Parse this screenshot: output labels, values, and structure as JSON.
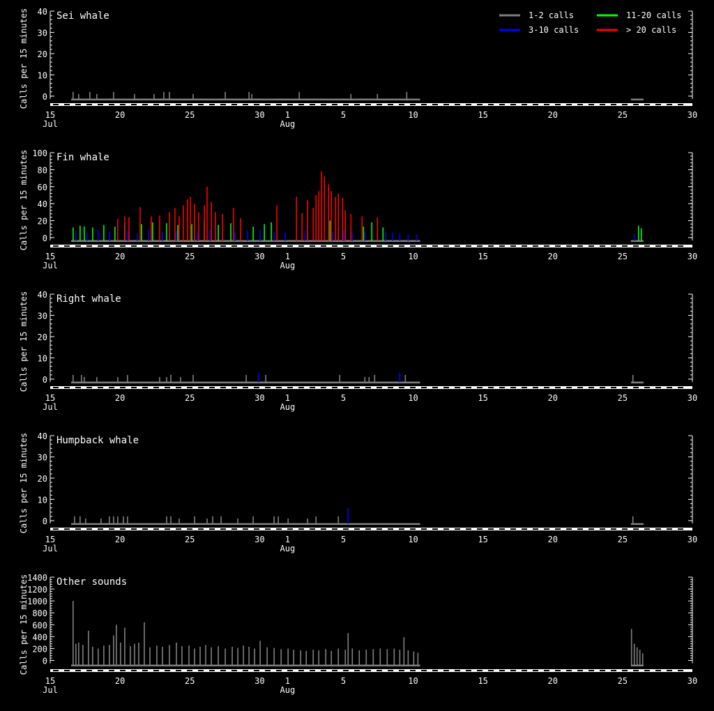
{
  "legend": {
    "entries": [
      {
        "label": "1-2 calls",
        "color": "#808080"
      },
      {
        "label": "11-20 calls",
        "color": "#00ff00"
      },
      {
        "label": "3-10 calls",
        "color": "#0000ff"
      },
      {
        "label": "> 20 calls",
        "color": "#ff0000"
      }
    ]
  },
  "time_axis": {
    "ticks": [
      {
        "day": 15,
        "label": "15",
        "sub": "Jul"
      },
      {
        "day": 20,
        "label": "20"
      },
      {
        "day": 25,
        "label": "25"
      },
      {
        "day": 30,
        "label": "30"
      },
      {
        "day": 32,
        "label": "1",
        "sub": "Aug"
      },
      {
        "day": 36,
        "label": "5"
      },
      {
        "day": 41,
        "label": "10"
      },
      {
        "day": 46,
        "label": "15"
      },
      {
        "day": 51,
        "label": "20"
      },
      {
        "day": 56,
        "label": "25"
      },
      {
        "day": 61,
        "label": "30"
      }
    ],
    "day_range": [
      15,
      61
    ]
  },
  "chart_data": [
    {
      "type": "bar",
      "title": "Sei whale",
      "ylabel": "Calls per 15 minutes",
      "ylim": [
        -2,
        40
      ],
      "yticks": [
        0,
        10,
        20,
        30,
        40
      ],
      "coverage": [
        [
          16.5,
          41.5
        ],
        [
          56.6,
          57.5
        ]
      ],
      "series": [
        {
          "name": "1-2 calls",
          "values": [
            [
              16.6,
              2
            ],
            [
              17.0,
              1
            ],
            [
              17.8,
              2
            ],
            [
              18.3,
              1
            ],
            [
              19.5,
              2
            ],
            [
              21.0,
              1
            ],
            [
              22.4,
              1
            ],
            [
              23.1,
              2
            ],
            [
              23.5,
              2
            ],
            [
              25.2,
              1
            ],
            [
              27.5,
              2
            ],
            [
              29.2,
              2
            ],
            [
              29.4,
              1
            ],
            [
              32.8,
              2
            ],
            [
              36.5,
              1
            ],
            [
              38.4,
              1
            ],
            [
              40.5,
              2
            ]
          ]
        }
      ]
    },
    {
      "type": "bar",
      "title": "Fin whale",
      "ylabel": "Calls per 15 minutes",
      "ylim": [
        -5,
        100
      ],
      "yticks": [
        0,
        20,
        40,
        60,
        80,
        100
      ],
      "coverage": [
        [
          16.5,
          41.5
        ],
        [
          56.6,
          57.5
        ]
      ],
      "series": [
        {
          "name": "3-10 calls",
          "values": [
            [
              16.8,
              8
            ],
            [
              17.6,
              6
            ],
            [
              18.4,
              9
            ],
            [
              19.2,
              7
            ],
            [
              20.5,
              8
            ],
            [
              21.2,
              5
            ],
            [
              22.0,
              9
            ],
            [
              23.0,
              7
            ],
            [
              24.0,
              8
            ],
            [
              25.5,
              6
            ],
            [
              26.4,
              9
            ],
            [
              27.3,
              8
            ],
            [
              28.2,
              6
            ],
            [
              29.1,
              8
            ],
            [
              30.0,
              9
            ],
            [
              31.0,
              7
            ],
            [
              31.8,
              6
            ],
            [
              33.2,
              8
            ],
            [
              34.4,
              9
            ],
            [
              35.2,
              7
            ],
            [
              36.0,
              8
            ],
            [
              36.6,
              6
            ],
            [
              37.5,
              7
            ],
            [
              38.4,
              9
            ],
            [
              39.0,
              7
            ],
            [
              39.5,
              6
            ],
            [
              40.0,
              5
            ],
            [
              40.6,
              4
            ],
            [
              41.2,
              4
            ],
            [
              56.8,
              5
            ]
          ]
        },
        {
          "name": "11-20 calls",
          "values": [
            [
              16.6,
              12
            ],
            [
              17.1,
              14
            ],
            [
              17.4,
              13
            ],
            [
              18.0,
              12
            ],
            [
              18.8,
              15
            ],
            [
              19.6,
              13
            ],
            [
              20.3,
              18
            ],
            [
              21.5,
              16
            ],
            [
              22.3,
              18
            ],
            [
              23.3,
              17
            ],
            [
              24.1,
              15
            ],
            [
              25.1,
              16
            ],
            [
              26.0,
              20
            ],
            [
              27.0,
              15
            ],
            [
              27.9,
              17
            ],
            [
              29.5,
              13
            ],
            [
              30.3,
              16
            ],
            [
              30.8,
              18
            ],
            [
              33.4,
              14
            ],
            [
              35.0,
              20
            ],
            [
              35.6,
              12
            ],
            [
              37.4,
              13
            ],
            [
              38.0,
              18
            ],
            [
              38.8,
              12
            ],
            [
              57.1,
              14
            ],
            [
              57.3,
              11
            ]
          ]
        },
        {
          "name": "> 20 calls",
          "values": [
            [
              19.8,
              22
            ],
            [
              20.3,
              25
            ],
            [
              20.6,
              24
            ],
            [
              21.4,
              36
            ],
            [
              22.2,
              25
            ],
            [
              22.8,
              26
            ],
            [
              23.5,
              30
            ],
            [
              23.9,
              35
            ],
            [
              24.2,
              25
            ],
            [
              24.5,
              38
            ],
            [
              24.8,
              45
            ],
            [
              25.0,
              48
            ],
            [
              25.3,
              40
            ],
            [
              25.6,
              30
            ],
            [
              26.0,
              38
            ],
            [
              26.2,
              60
            ],
            [
              26.5,
              42
            ],
            [
              26.8,
              30
            ],
            [
              27.3,
              28
            ],
            [
              28.1,
              35
            ],
            [
              28.6,
              23
            ],
            [
              31.2,
              38
            ],
            [
              32.6,
              48
            ],
            [
              33.0,
              29
            ],
            [
              33.4,
              44
            ],
            [
              33.8,
              35
            ],
            [
              34.0,
              50
            ],
            [
              34.2,
              55
            ],
            [
              34.4,
              78
            ],
            [
              34.6,
              72
            ],
            [
              34.9,
              63
            ],
            [
              35.1,
              55
            ],
            [
              35.4,
              48
            ],
            [
              35.6,
              52
            ],
            [
              35.9,
              47
            ],
            [
              36.1,
              32
            ],
            [
              36.5,
              28
            ],
            [
              37.3,
              25
            ],
            [
              38.4,
              24
            ]
          ]
        }
      ]
    },
    {
      "type": "bar",
      "title": "Right whale",
      "ylabel": "Calls per 15 minutes",
      "ylim": [
        -2,
        40
      ],
      "yticks": [
        0,
        10,
        20,
        30,
        40
      ],
      "coverage": [
        [
          16.5,
          41.5
        ],
        [
          56.6,
          57.5
        ]
      ],
      "series": [
        {
          "name": "1-2 calls",
          "values": [
            [
              16.6,
              2
            ],
            [
              17.2,
              2
            ],
            [
              17.4,
              1
            ],
            [
              18.3,
              1
            ],
            [
              19.8,
              1
            ],
            [
              20.5,
              2
            ],
            [
              22.8,
              1
            ],
            [
              23.3,
              1
            ],
            [
              23.6,
              2
            ],
            [
              24.3,
              1
            ],
            [
              25.2,
              2
            ],
            [
              29.0,
              2
            ],
            [
              30.4,
              2
            ],
            [
              35.7,
              2
            ],
            [
              37.5,
              1
            ],
            [
              37.8,
              1
            ],
            [
              38.2,
              2
            ],
            [
              40.4,
              2
            ],
            [
              56.7,
              2
            ]
          ]
        },
        {
          "name": "3-10 calls",
          "values": [
            [
              29.9,
              3
            ],
            [
              40.0,
              3
            ]
          ]
        }
      ]
    },
    {
      "type": "bar",
      "title": "Humpback whale",
      "ylabel": "Calls per 15 minutes",
      "ylim": [
        -2,
        40
      ],
      "yticks": [
        0,
        10,
        20,
        30,
        40
      ],
      "coverage": [
        [
          16.5,
          41.5
        ],
        [
          56.6,
          57.5
        ]
      ],
      "series": [
        {
          "name": "1-2 calls",
          "values": [
            [
              16.7,
              2
            ],
            [
              17.1,
              2
            ],
            [
              17.5,
              1
            ],
            [
              18.6,
              1
            ],
            [
              19.2,
              2
            ],
            [
              19.5,
              2
            ],
            [
              19.8,
              2
            ],
            [
              20.2,
              2
            ],
            [
              20.5,
              2
            ],
            [
              23.3,
              2
            ],
            [
              23.6,
              2
            ],
            [
              24.2,
              1
            ],
            [
              25.3,
              2
            ],
            [
              26.2,
              1
            ],
            [
              26.6,
              2
            ],
            [
              27.2,
              2
            ],
            [
              28.4,
              1
            ],
            [
              29.5,
              2
            ],
            [
              31.0,
              2
            ],
            [
              31.3,
              2
            ],
            [
              32.0,
              1
            ],
            [
              33.4,
              1
            ],
            [
              34.0,
              2
            ],
            [
              35.6,
              2
            ],
            [
              56.7,
              2
            ]
          ]
        },
        {
          "name": "3-10 calls",
          "values": [
            [
              36.3,
              6
            ]
          ]
        }
      ]
    },
    {
      "type": "bar",
      "title": "Other sounds",
      "ylabel": "Calls per 15 minutes",
      "ylim": [
        -100,
        1400
      ],
      "yticks": [
        0,
        200,
        400,
        600,
        800,
        1000,
        1200,
        1400
      ],
      "coverage": [
        [
          16.5,
          41.5
        ],
        [
          56.6,
          57.5
        ]
      ],
      "series": [
        {
          "name": "1-2 calls",
          "values": [
            [
              16.6,
              1000
            ],
            [
              16.8,
              280
            ],
            [
              17.0,
              300
            ],
            [
              17.3,
              260
            ],
            [
              17.7,
              500
            ],
            [
              18.0,
              230
            ],
            [
              18.4,
              200
            ],
            [
              18.8,
              250
            ],
            [
              19.2,
              260
            ],
            [
              19.5,
              420
            ],
            [
              19.7,
              600
            ],
            [
              20.0,
              300
            ],
            [
              20.3,
              550
            ],
            [
              20.7,
              240
            ],
            [
              21.0,
              280
            ],
            [
              21.3,
              300
            ],
            [
              21.7,
              640
            ],
            [
              22.1,
              220
            ],
            [
              22.6,
              250
            ],
            [
              23.0,
              230
            ],
            [
              23.5,
              260
            ],
            [
              24.0,
              300
            ],
            [
              24.4,
              240
            ],
            [
              24.9,
              250
            ],
            [
              25.3,
              200
            ],
            [
              25.7,
              230
            ],
            [
              26.1,
              260
            ],
            [
              26.5,
              220
            ],
            [
              27.0,
              240
            ],
            [
              27.5,
              200
            ],
            [
              28.0,
              230
            ],
            [
              28.4,
              210
            ],
            [
              28.8,
              250
            ],
            [
              29.2,
              230
            ],
            [
              29.6,
              200
            ],
            [
              30.0,
              330
            ],
            [
              30.5,
              220
            ],
            [
              31.0,
              210
            ],
            [
              31.5,
              190
            ],
            [
              32.0,
              200
            ],
            [
              32.4,
              180
            ],
            [
              32.9,
              170
            ],
            [
              33.3,
              160
            ],
            [
              33.8,
              180
            ],
            [
              34.2,
              170
            ],
            [
              34.7,
              190
            ],
            [
              35.1,
              160
            ],
            [
              35.6,
              200
            ],
            [
              36.1,
              180
            ],
            [
              36.3,
              460
            ],
            [
              36.6,
              200
            ],
            [
              37.1,
              170
            ],
            [
              37.6,
              180
            ],
            [
              38.1,
              190
            ],
            [
              38.6,
              200
            ],
            [
              39.1,
              190
            ],
            [
              39.6,
              200
            ],
            [
              40.0,
              180
            ],
            [
              40.3,
              390
            ],
            [
              40.6,
              170
            ],
            [
              41.0,
              150
            ],
            [
              41.3,
              130
            ],
            [
              56.6,
              530
            ],
            [
              56.8,
              280
            ],
            [
              57.0,
              220
            ],
            [
              57.2,
              180
            ],
            [
              57.4,
              120
            ]
          ]
        }
      ]
    }
  ]
}
